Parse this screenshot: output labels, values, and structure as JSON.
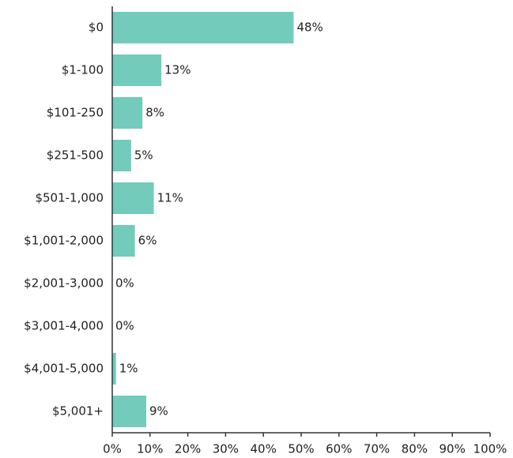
{
  "chart_data": {
    "type": "bar",
    "orientation": "horizontal",
    "categories": [
      "$0",
      "$1-100",
      "$101-250",
      "$251-500",
      "$501-1,000",
      "$1,001-2,000",
      "$2,001-3,000",
      "$3,001-4,000",
      "$4,001-5,000",
      "$5,001+"
    ],
    "values": [
      48,
      13,
      8,
      5,
      11,
      6,
      0,
      0,
      1,
      9
    ],
    "value_labels": [
      "48%",
      "13%",
      "8%",
      "5%",
      "11%",
      "6%",
      "0%",
      "0%",
      "1%",
      "9%"
    ],
    "color": "#72cbbb",
    "xlim": [
      0,
      100
    ],
    "xticks": [
      {
        "value": 0,
        "label": "0%"
      },
      {
        "value": 10,
        "label": "10%"
      },
      {
        "value": 20,
        "label": "20%"
      },
      {
        "value": 30,
        "label": "30%"
      },
      {
        "value": 40,
        "label": "40%"
      },
      {
        "value": 50,
        "label": "50%"
      },
      {
        "value": 60,
        "label": "60%"
      },
      {
        "value": 70,
        "label": "70%"
      },
      {
        "value": 80,
        "label": "80%"
      },
      {
        "value": 90,
        "label": "90%"
      },
      {
        "value": 100,
        "label": "100%"
      }
    ],
    "grid": false
  }
}
